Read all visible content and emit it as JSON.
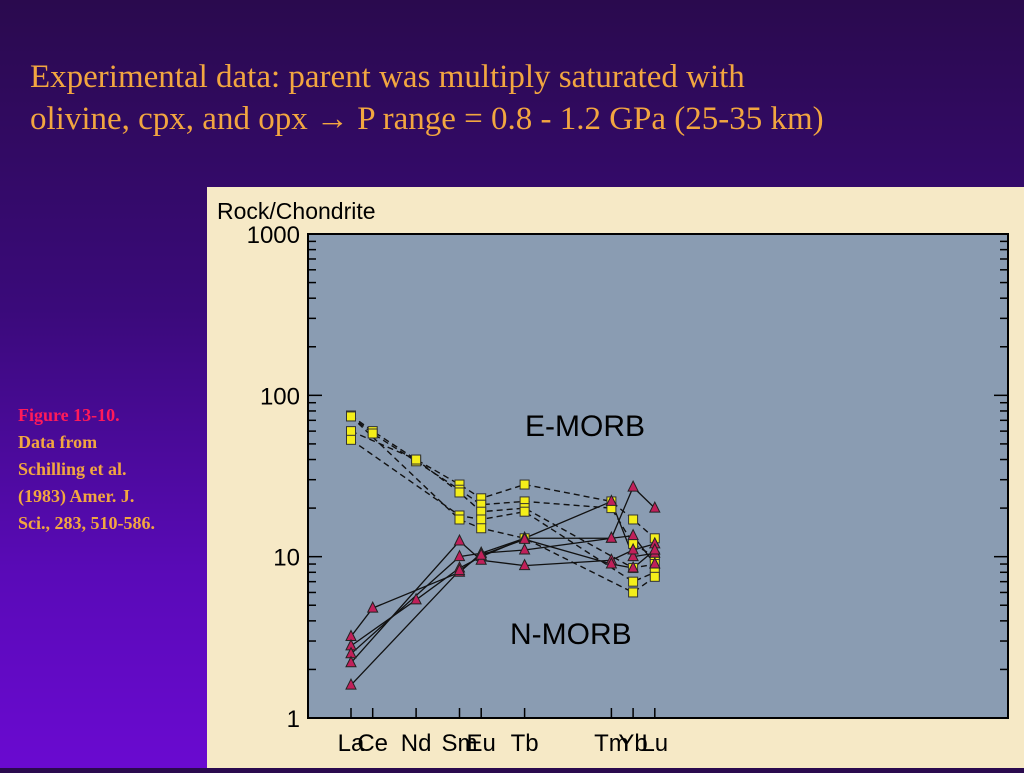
{
  "slide": {
    "title_line1": "Experimental data: parent was multiply saturated with",
    "title_line2": "olivine, cpx, and opx → P range = 0.8 - 1.2 GPa (25-35 km)",
    "caption": [
      "Figure 13-10.",
      "Data from",
      "Schilling et al.",
      "(1983) Amer. J.",
      "Sci., 283, 510-586."
    ]
  },
  "colors": {
    "plot_bg": "#8a9cb2",
    "panel_bg": "#f6e9c6",
    "emorb_fill": "#f4ee1a",
    "nmorb_fill": "#c0205a",
    "title": "#f2a640",
    "caption_accent": "#ff1a5a"
  },
  "chart_data": {
    "type": "line",
    "ylabel": "Rock/Chondrite",
    "yscale": "log",
    "ylim": [
      1,
      1000
    ],
    "ytick_labels": [
      "1000",
      "100",
      "10",
      "1"
    ],
    "categories": [
      "La",
      "Ce",
      "Nd",
      "Sm",
      "Eu",
      "Tb",
      "Tm",
      "Yb",
      "Lu"
    ],
    "category_positions": [
      57,
      58,
      60,
      62,
      63,
      65,
      69,
      70,
      71
    ],
    "annotations": [
      "E-MORB",
      "N-MORB"
    ],
    "series": [
      {
        "group": "E-MORB",
        "marker": "square",
        "style": "dashed",
        "values": [
          75,
          60,
          40,
          28,
          23,
          28,
          22,
          17,
          13
        ]
      },
      {
        "group": "E-MORB",
        "marker": "square",
        "style": "dashed",
        "values": [
          74,
          58,
          39,
          26,
          21,
          22,
          20,
          12,
          10
        ]
      },
      {
        "group": "E-MORB",
        "marker": "square",
        "style": "dashed",
        "values": [
          60,
          null,
          40,
          25,
          19,
          20,
          null,
          8.5,
          9
        ]
      },
      {
        "group": "E-MORB",
        "marker": "square",
        "style": "dashed",
        "values": [
          53,
          null,
          null,
          18,
          17,
          19,
          null,
          7,
          8
        ]
      },
      {
        "group": "E-MORB",
        "marker": "square",
        "style": "dashed",
        "values": [
          74,
          null,
          null,
          17,
          15,
          13,
          null,
          6,
          7.5
        ]
      },
      {
        "group": "N-MORB",
        "marker": "triangle",
        "style": "solid",
        "values": [
          3.2,
          4.8,
          null,
          8,
          10.5,
          11,
          13,
          27,
          20
        ]
      },
      {
        "group": "N-MORB",
        "marker": "triangle",
        "style": "solid",
        "values": [
          2.8,
          null,
          5.4,
          8.5,
          10,
          13,
          22,
          10,
          10.5
        ]
      },
      {
        "group": "N-MORB",
        "marker": "triangle",
        "style": "solid",
        "values": [
          2.5,
          null,
          null,
          10,
          10.5,
          13,
          13,
          13.5,
          9
        ]
      },
      {
        "group": "N-MORB",
        "marker": "triangle",
        "style": "solid",
        "values": [
          2.2,
          null,
          null,
          12.5,
          9.5,
          8.8,
          9.5,
          11,
          12
        ]
      },
      {
        "group": "N-MORB",
        "marker": "triangle",
        "style": "solid",
        "values": [
          1.6,
          null,
          null,
          8.2,
          10.2,
          12.8,
          9,
          8.5,
          11
        ]
      }
    ]
  }
}
